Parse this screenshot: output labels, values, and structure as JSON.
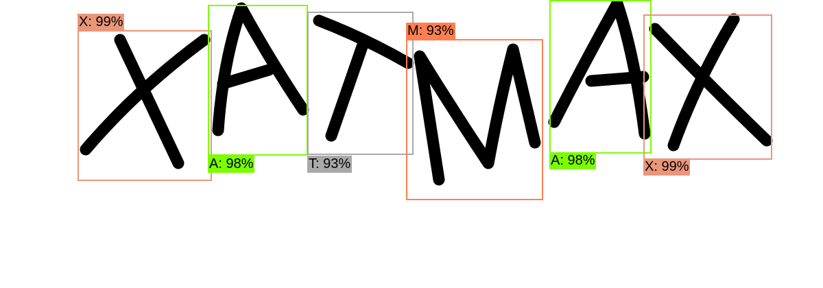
{
  "detections": [
    {
      "char": "X",
      "score_text": "X: 99%",
      "color": "#e9967a"
    },
    {
      "char": "A",
      "score_text": "A: 98%",
      "color": "#7cfc00"
    },
    {
      "char": "T",
      "score_text": "T: 93%",
      "color": "#a9a9a9"
    },
    {
      "char": "M",
      "score_text": "M: 93%",
      "color": "#ff7f50"
    },
    {
      "char": "A",
      "score_text": "A: 98%",
      "color": "#7cfc00"
    },
    {
      "char": "X",
      "score_text": "X: 99%",
      "color": "#e9967a"
    }
  ]
}
